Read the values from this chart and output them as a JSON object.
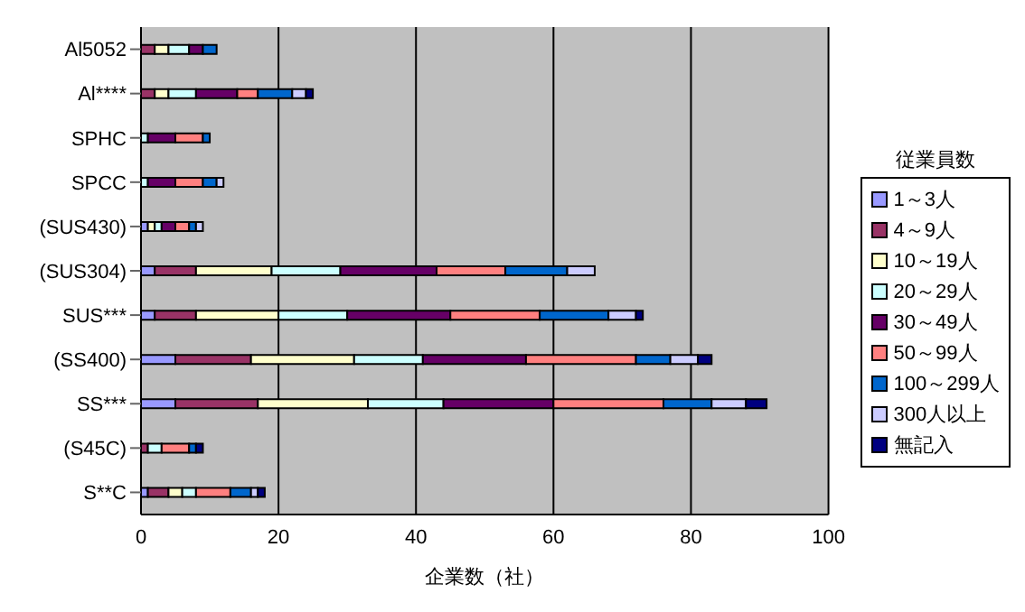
{
  "chart_data": {
    "type": "bar",
    "orientation": "horizontal",
    "stacked": true,
    "xlabel": "企業数（社）",
    "legend_title": "従業員数",
    "legend": "right",
    "grid": "x",
    "categories": [
      "Al5052",
      "Al****",
      "SPHC",
      "SPCC",
      "(SUS430)",
      "(SUS304)",
      "SUS***",
      "(SS400)",
      "SS***",
      "(S45C)",
      "S**C"
    ],
    "xlim": [
      0,
      100
    ],
    "xticks": [
      0,
      20,
      40,
      60,
      80,
      100
    ],
    "series": [
      {
        "name": "1～3人",
        "color": "#9999ff",
        "values": [
          0,
          0,
          0,
          0,
          1,
          2,
          2,
          5,
          5,
          0,
          1
        ]
      },
      {
        "name": "4～9人",
        "color": "#993366",
        "values": [
          2,
          2,
          0,
          0,
          0,
          6,
          6,
          11,
          12,
          1,
          3
        ]
      },
      {
        "name": "10～19人",
        "color": "#ffffcc",
        "values": [
          2,
          2,
          0,
          0,
          1,
          11,
          12,
          15,
          16,
          0,
          2
        ]
      },
      {
        "name": "20～29人",
        "color": "#ccffff",
        "values": [
          3,
          4,
          1,
          1,
          1,
          10,
          10,
          10,
          11,
          2,
          2
        ]
      },
      {
        "name": "30～49人",
        "color": "#660066",
        "values": [
          2,
          6,
          4,
          4,
          2,
          14,
          15,
          15,
          16,
          0,
          0
        ]
      },
      {
        "name": "50～99人",
        "color": "#ff8080",
        "values": [
          0,
          3,
          4,
          4,
          2,
          10,
          13,
          16,
          16,
          4,
          5
        ]
      },
      {
        "name": "100～299人",
        "color": "#0066cc",
        "values": [
          2,
          5,
          1,
          2,
          1,
          9,
          10,
          5,
          7,
          1,
          3
        ]
      },
      {
        "name": "300人以上",
        "color": "#ccccff",
        "values": [
          0,
          2,
          0,
          1,
          1,
          4,
          4,
          4,
          5,
          0,
          1
        ]
      },
      {
        "name": "無記入",
        "color": "#000080",
        "values": [
          0,
          1,
          0,
          0,
          0,
          0,
          1,
          2,
          3,
          1,
          1
        ]
      }
    ]
  }
}
